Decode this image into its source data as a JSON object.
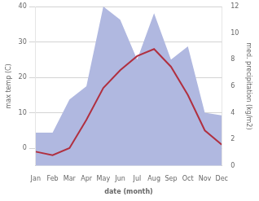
{
  "chart_data": {
    "type": "line",
    "categories": [
      "Jan",
      "Feb",
      "Mar",
      "Apr",
      "May",
      "Jun",
      "Jul",
      "Aug",
      "Sep",
      "Oct",
      "Nov",
      "Dec"
    ],
    "series": [
      {
        "type": "area",
        "color": "#b0b8e0",
        "axis": "y2",
        "values": [
          2.5,
          2.5,
          5.0,
          6.0,
          12.0,
          11.0,
          8.0,
          11.5,
          8.0,
          9.0,
          4.0,
          3.8
        ]
      },
      {
        "type": "line",
        "color": "#b03040",
        "values": [
          -1,
          -2,
          0,
          8,
          17,
          22,
          26,
          28,
          23,
          15,
          5,
          1
        ]
      }
    ],
    "xlabel": "date (month)",
    "ylabel": "max temp (C)",
    "y2label": "med. precipitation (kg/m2)",
    "ylim": [
      -5,
      40
    ],
    "yticks": [
      0,
      10,
      20,
      30,
      40
    ],
    "y2lim": [
      0,
      12
    ],
    "y2ticks": [
      0,
      2,
      4,
      6,
      8,
      10,
      12
    ],
    "grid": true
  }
}
